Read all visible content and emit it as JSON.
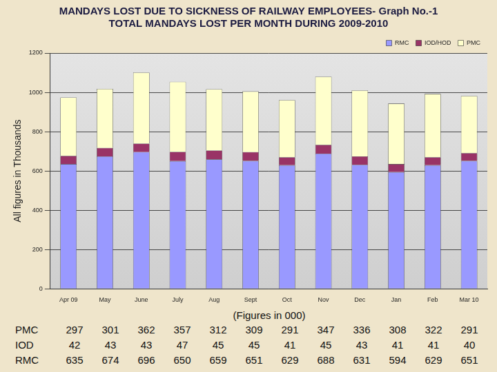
{
  "chart_data": {
    "type": "bar",
    "title": [
      "MANDAYS LOST DUE TO SICKNESS OF RAILWAY EMPLOYEES- Graph No.-1",
      "TOTAL MANDAYS LOST PER MONTH DURING 2009-2010"
    ],
    "y_label": "All figures in Thousands",
    "categories": [
      "Apr 09",
      "May",
      "June",
      "July",
      "Aug",
      "Sept",
      "Oct",
      "Nov",
      "Dec",
      "Jan",
      "Feb",
      "Mar 10"
    ],
    "series": [
      {
        "name": "RMC",
        "color": "#9999ff",
        "values": [
          635,
          674,
          696,
          650,
          659,
          651,
          629,
          688,
          631,
          594,
          629,
          651
        ]
      },
      {
        "name": "IOD/HOD",
        "color": "#993366",
        "values": [
          42,
          43,
          43,
          47,
          45,
          45,
          41,
          45,
          43,
          41,
          41,
          40
        ]
      },
      {
        "name": "PMC",
        "color": "#ffffcc",
        "values": [
          297,
          301,
          362,
          357,
          312,
          309,
          291,
          347,
          336,
          308,
          322,
          291
        ]
      }
    ],
    "stacked": true,
    "ylim": [
      0,
      1200
    ],
    "yticks": [
      0,
      200,
      400,
      600,
      800,
      1000,
      1200
    ],
    "grid": true,
    "legend": "top-right"
  },
  "table": {
    "caption": "(Figures in 000)",
    "rows": [
      {
        "label": "PMC",
        "values": [
          297,
          301,
          362,
          357,
          312,
          309,
          291,
          347,
          336,
          308,
          322,
          291
        ]
      },
      {
        "label": "IOD",
        "values": [
          42,
          43,
          43,
          47,
          45,
          45,
          41,
          45,
          43,
          41,
          41,
          40
        ]
      },
      {
        "label": "RMC",
        "values": [
          635,
          674,
          696,
          650,
          659,
          651,
          629,
          688,
          631,
          594,
          629,
          651
        ]
      }
    ]
  }
}
